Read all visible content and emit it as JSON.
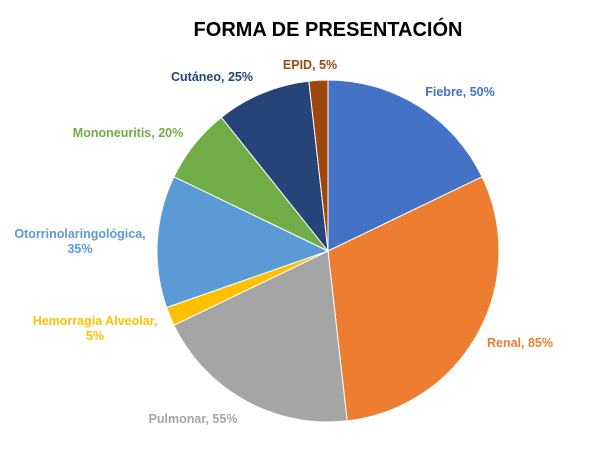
{
  "chart_data": {
    "type": "pie",
    "title": "FORMA DE PRESENTACIÓN",
    "slices": [
      {
        "name": "Fiebre",
        "value": 50,
        "label": "Fiebre, 50%",
        "color": "#4472C4"
      },
      {
        "name": "Renal",
        "value": 85,
        "label": "Renal, 85%",
        "color": "#ED7D31"
      },
      {
        "name": "Pulmonar",
        "value": 55,
        "label": "Pulmonar, 55%",
        "color": "#A5A5A5"
      },
      {
        "name": "Hemorragia Alveolar",
        "value": 5,
        "label_lines": [
          "Hemorragia Alveolar,",
          "5%"
        ],
        "color": "#FFC000"
      },
      {
        "name": "Otorrinolaringológica",
        "value": 35,
        "label_lines": [
          "Otorrinolaringológica,",
          "35%"
        ],
        "color": "#5B9BD5"
      },
      {
        "name": "Mononeuritis",
        "value": 20,
        "label": "Mononeuritis, 20%",
        "color": "#70AD47"
      },
      {
        "name": "Cutáneo",
        "value": 25,
        "label": "Cutáneo, 25%",
        "color": "#264478"
      },
      {
        "name": "EPID",
        "value": 5,
        "label": "EPID, 5%",
        "color": "#9E480E"
      }
    ],
    "start": "12 o'clock",
    "direction": "clockwise",
    "legend": "none",
    "data_labels": "outside"
  }
}
